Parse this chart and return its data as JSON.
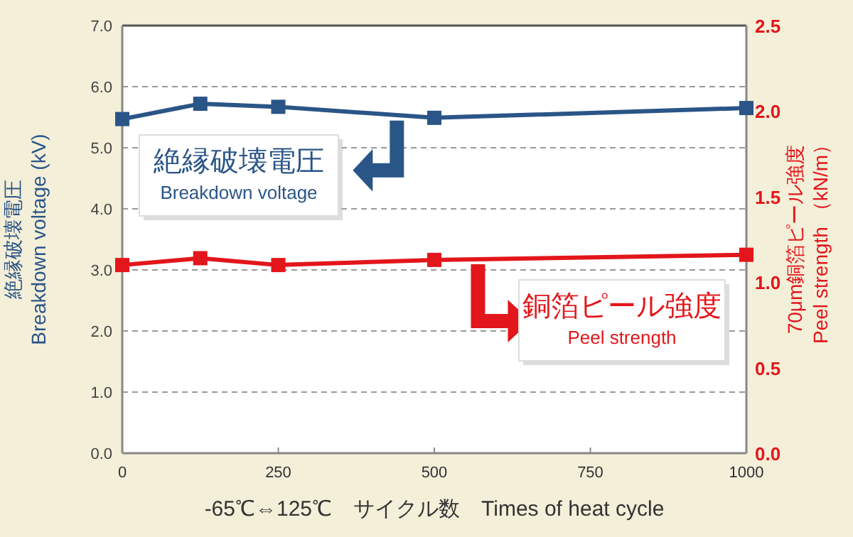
{
  "chart_data": {
    "type": "line",
    "xlabel": "-65℃⇔125℃　サイクル数　Times of heat cycle",
    "ylabel": "絶縁破壊電圧\nBreakdown voltage (kV)",
    "y2label": "70μm銅箔ピール強度\nPeel strength （kN/m）",
    "x": [
      0,
      125,
      250,
      500,
      1000
    ],
    "series": [
      {
        "name": "絶縁破壊電圧\nBreakdown voltage",
        "color": "#2a5587",
        "values": [
          5.47,
          5.72,
          5.67,
          5.49,
          5.65
        ]
      },
      {
        "name": "銅箔ピール強度\nPeel strength",
        "color": "#e3161b",
        "axis": "y2",
        "values": [
          1.1,
          1.14,
          1.1,
          1.13,
          1.16
        ]
      }
    ],
    "xlim": [
      0,
      1000
    ],
    "xticks": [
      0,
      250,
      500,
      750,
      1000
    ],
    "ylim": [
      0,
      7
    ],
    "yticks": [
      {
        "value": 0,
        "label": "0.0"
      },
      {
        "value": 1,
        "label": "1.0"
      },
      {
        "value": 2,
        "label": "2.0"
      },
      {
        "value": 3,
        "label": "3.0"
      },
      {
        "value": 4,
        "label": "4.0"
      },
      {
        "value": 5,
        "label": "5.0"
      },
      {
        "value": 6,
        "label": "6.0"
      },
      {
        "value": 7,
        "label": "7.0"
      }
    ],
    "y2lim": [
      0,
      2.5
    ],
    "y2ticks": [
      {
        "value": 0,
        "label": "0.0"
      },
      {
        "value": 0.5,
        "label": "0.5"
      },
      {
        "value": 1,
        "label": "1.0"
      },
      {
        "value": 1.5,
        "label": "1.5"
      },
      {
        "value": 2,
        "label": "2.0"
      },
      {
        "value": 2.5,
        "label": "2.5"
      }
    ],
    "grid": "y",
    "marker": "square",
    "line_style": "solid"
  }
}
